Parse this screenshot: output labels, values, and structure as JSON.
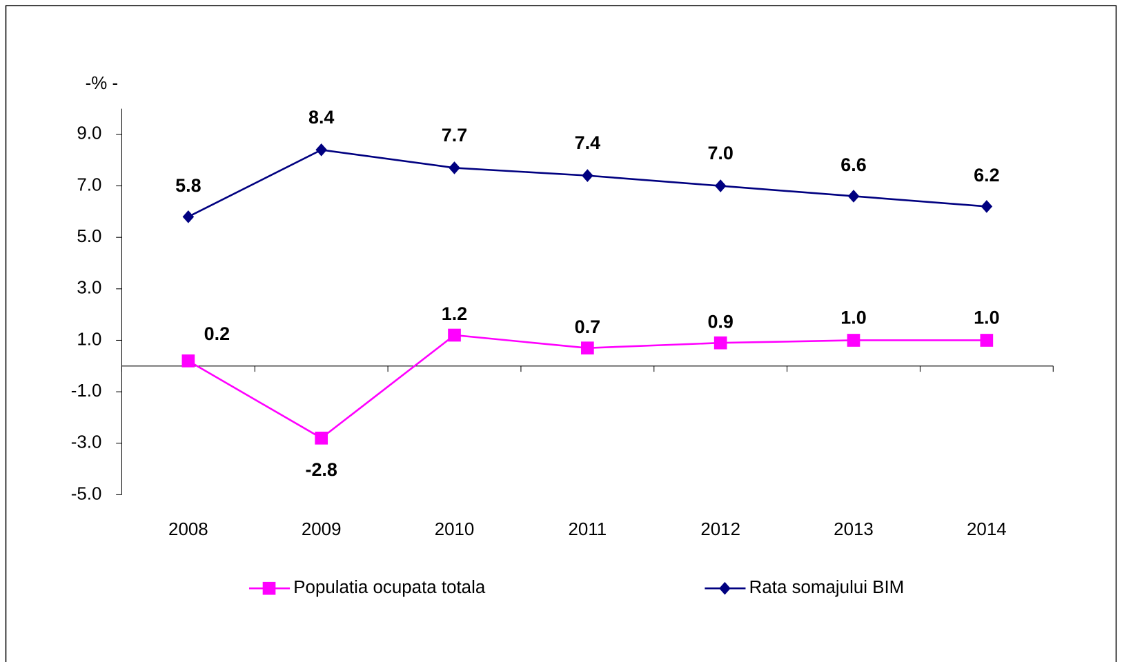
{
  "chart_data": {
    "type": "line",
    "y_axis_label": "-% -",
    "categories": [
      "2008",
      "2009",
      "2010",
      "2011",
      "2012",
      "2013",
      "2014"
    ],
    "series": [
      {
        "name": "Populatia ocupata totala",
        "color": "#ff00ff",
        "marker": "square",
        "values": [
          0.2,
          -2.8,
          1.2,
          0.7,
          0.9,
          1.0,
          1.0
        ],
        "value_labels": [
          "0.2",
          "-2.8",
          "1.2",
          "0.7",
          "0.9",
          "1.0",
          "1.0"
        ]
      },
      {
        "name": "Rata somajului BIM",
        "color": "#000080",
        "marker": "diamond",
        "values": [
          5.8,
          8.4,
          7.7,
          7.4,
          7.0,
          6.6,
          6.2
        ],
        "value_labels": [
          "5.8",
          "8.4",
          "7.7",
          "7.4",
          "7.0",
          "6.6",
          "6.2"
        ]
      }
    ],
    "ylim": [
      -5,
      10
    ],
    "yticks": [
      {
        "value": 9,
        "label": "9.0"
      },
      {
        "value": 7,
        "label": "7.0"
      },
      {
        "value": 5,
        "label": "5.0"
      },
      {
        "value": 3,
        "label": "3.0"
      },
      {
        "value": 1,
        "label": "1.0"
      },
      {
        "value": -1,
        "label": "-1.0"
      },
      {
        "value": -3,
        "label": "-3.0"
      },
      {
        "value": -5,
        "label": "-5.0"
      }
    ],
    "grid": false
  }
}
